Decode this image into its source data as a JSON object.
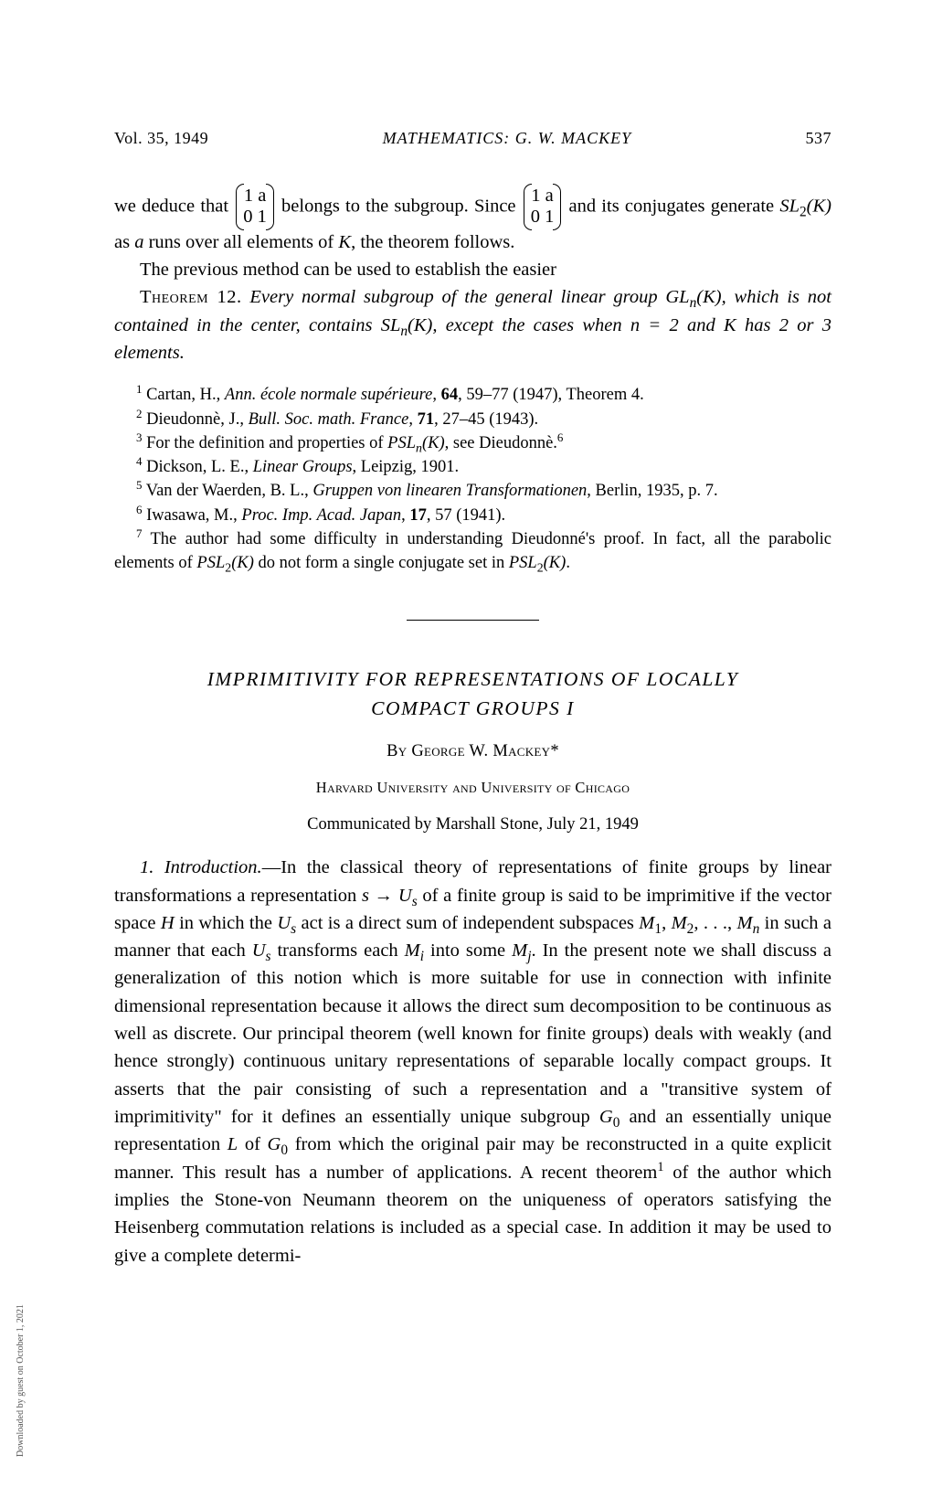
{
  "header": {
    "volume": "Vol. 35, 1949",
    "section": "MATHEMATICS: G. W. MACKEY",
    "page": "537"
  },
  "body": {
    "para1_pre": "we deduce that ",
    "para1_mid": " belongs to the subgroup.   Since ",
    "para1_post": " and its conjugates generate ",
    "para1_sl2k": "SL",
    "para1_sl2k_sub": "2",
    "para1_sl2k_arg": "(K)",
    "para1_end": " as a runs over all elements of K, the theorem follows.",
    "matrix_r1": "1  a",
    "matrix_r2": "0  1",
    "para2": "The previous method can be used to establish the easier",
    "theorem_label": "Theorem 12.",
    "theorem_text_1": "Every normal subgroup of the general linear group GL",
    "theorem_gln_sub": "n",
    "theorem_gln_arg": "(K),",
    "theorem_text_2": " which is not contained in the center, contains SL",
    "theorem_sln_sub": "n",
    "theorem_sln_arg": "(K),",
    "theorem_text_3": " except the cases when n = 2 and K has 2 or 3 elements."
  },
  "footnotes": {
    "f1_sup": "1",
    "f1": " Cartan, H., Ann. école normale supérieure, 64, 59–77 (1947), Theorem 4.",
    "f2_sup": "2",
    "f2": " Dieudonnè, J., Bull. Soc. math. France, 71, 27–45 (1943).",
    "f3_sup": "3",
    "f3_a": " For the definition and properties of ",
    "f3_psl": "PSL",
    "f3_psl_sub": "n",
    "f3_psl_arg": "(K)",
    "f3_b": ", see Dieudonnè.",
    "f3_ref": "6",
    "f4_sup": "4",
    "f4": " Dickson, L. E., Linear Groups, Leipzig, 1901.",
    "f5_sup": "5",
    "f5": " Van der Waerden, B. L., Gruppen von linearen Transformationen, Berlin, 1935, p. 7.",
    "f6_sup": "6",
    "f6": " Iwasawa, M., Proc. Imp. Acad. Japan, 17, 57 (1941).",
    "f7_sup": "7",
    "f7_a": " The author had some difficulty in understanding Dieudonné's proof.  In fact, all the parabolic elements of ",
    "f7_psl1": "PSL",
    "f7_psl1_sub": "2",
    "f7_psl1_arg": "(K)",
    "f7_b": " do not form a single conjugate set in ",
    "f7_psl2": "PSL",
    "f7_psl2_sub": "2",
    "f7_psl2_arg": "(K)",
    "f7_c": "."
  },
  "article": {
    "title_line1": "IMPRIMITIVITY FOR REPRESENTATIONS OF LOCALLY",
    "title_line2": "COMPACT GROUPS I",
    "author": "By George W. Mackey*",
    "affiliation": "Harvard University and University of Chicago",
    "communicated": "Communicated by Marshall Stone, July 21, 1949",
    "section_num": "1.",
    "section_title": "Introduction.",
    "intro_a": "—In the classical theory of representations of finite groups by linear transformations a representation ",
    "intro_s": "s → U",
    "intro_s_sub": "s",
    "intro_b": " of a finite group is said to be imprimitive if the vector space ",
    "intro_H": "H",
    "intro_c": " in which the ",
    "intro_Us": "U",
    "intro_Us_sub": "s",
    "intro_d": " act is a direct sum of independent subspaces ",
    "intro_M1": "M",
    "intro_M1_sub": "1",
    "intro_comma1": ", ",
    "intro_M2": "M",
    "intro_M2_sub": "2",
    "intro_dots": ", . . ., ",
    "intro_Mn": "M",
    "intro_Mn_sub": "n",
    "intro_e": " in such a manner that each ",
    "intro_Us2": "U",
    "intro_Us2_sub": "s",
    "intro_f": " transforms each ",
    "intro_Mi": "M",
    "intro_Mi_sub": "i",
    "intro_g": " into some ",
    "intro_Mj": "M",
    "intro_Mj_sub": "j",
    "intro_h": ".   In the present note we shall discuss a generalization of this notion which is more suitable for use in connection with infinite dimensional representation because it allows the direct sum decomposition to be continuous as well as discrete.   Our principal theorem (well known for finite groups) deals with weakly (and hence strongly) continuous unitary representations of separable locally compact groups.   It asserts that the pair consisting of such a representation and a \"transitive system of imprimitivity\" for it defines an essentially unique subgroup ",
    "intro_G0": "G",
    "intro_G0_sub": "0",
    "intro_i": " and an essentially unique representation ",
    "intro_L": "L",
    "intro_j": " of ",
    "intro_G02": "G",
    "intro_G02_sub": "0",
    "intro_k": " from which the original pair may be reconstructed in a quite explicit manner.  This result has a number of applications.   A recent theorem",
    "intro_ref1": "1",
    "intro_l": " of the author which implies the Stone-von Neumann theorem on the uniqueness of operators satisfying the Heisenberg commutation relations is included as a special case.   In addition it may be used to give a complete determi-"
  },
  "sidebar": "Downloaded by guest on October 1, 2021"
}
